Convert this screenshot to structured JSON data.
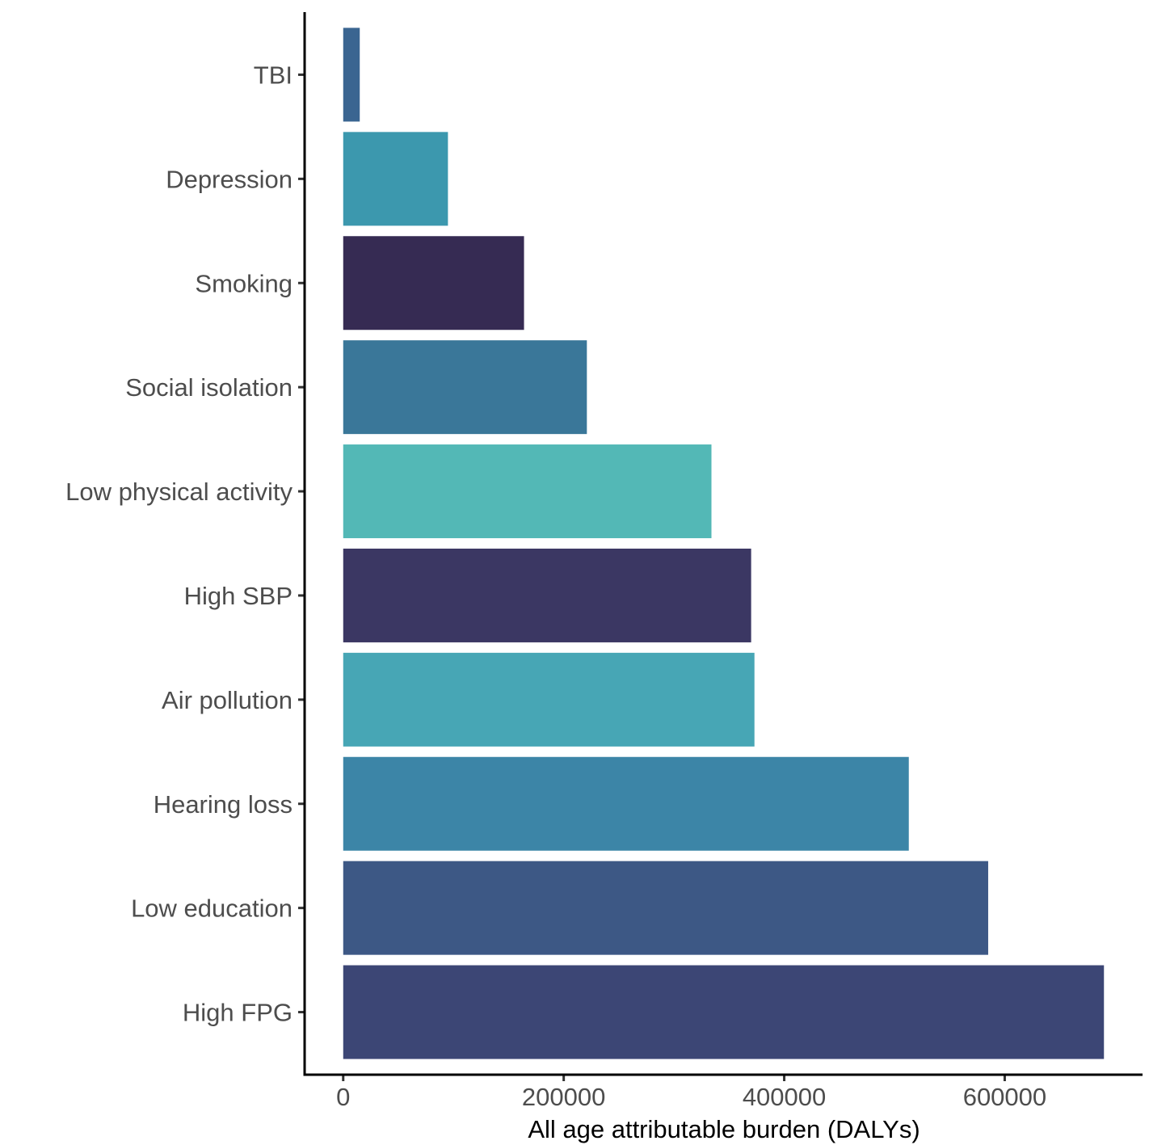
{
  "chart_data": {
    "type": "bar",
    "orientation": "horizontal",
    "title": "",
    "xlabel": "All age attributable burden (DALYs)",
    "ylabel": "",
    "xlim": [
      -35000,
      725000
    ],
    "xticks": [
      0,
      200000,
      400000,
      600000
    ],
    "xtick_labels": [
      "0",
      "200000",
      "400000",
      "600000"
    ],
    "grid": false,
    "legend": "none",
    "categories": [
      "TBI",
      "Depression",
      "Smoking",
      "Social isolation",
      "Low physical activity",
      "High SBP",
      "Air pollution",
      "Hearing loss",
      "Low education",
      "High FPG"
    ],
    "values": [
      15000,
      95000,
      164000,
      221000,
      334000,
      370000,
      373000,
      513000,
      585000,
      690000
    ],
    "colors": [
      "#3a6591",
      "#3c98ae",
      "#362b53",
      "#3a7799",
      "#53b8b6",
      "#3b3763",
      "#47a6b5",
      "#3c85a7",
      "#3d5885",
      "#3c4675"
    ]
  }
}
